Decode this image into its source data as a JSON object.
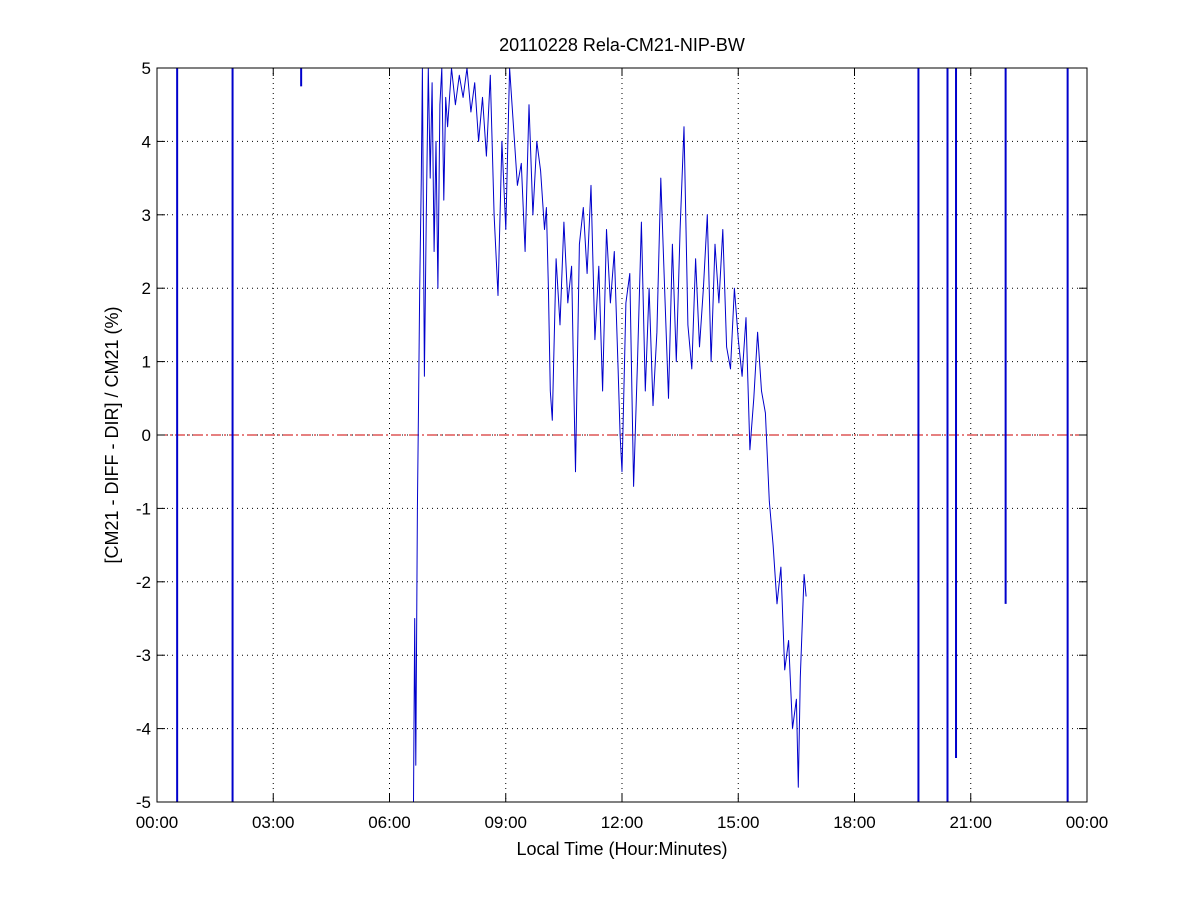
{
  "chart_data": {
    "type": "line",
    "title": "20110228 Rela-CM21-NIP-BW",
    "xlabel": "Local Time (Hour:Minutes)",
    "ylabel": "[CM21 - DIFF - DIR] / CM21 (%)",
    "xlim_hours": [
      0,
      24
    ],
    "ylim": [
      -5,
      5
    ],
    "x_ticks": [
      "00:00",
      "03:00",
      "06:00",
      "09:00",
      "12:00",
      "15:00",
      "18:00",
      "21:00",
      "00:00"
    ],
    "y_ticks": [
      "5",
      "4",
      "3",
      "2",
      "1",
      "0",
      "-1",
      "-2",
      "-3",
      "-4",
      "-5"
    ],
    "grid": true,
    "reference_line": {
      "y": 0,
      "style": "dash-dot",
      "color": "#cc0000"
    },
    "series_color": "#0000cc",
    "series": [
      {
        "x_hours": [
          6.62,
          6.65,
          6.68,
          6.72,
          6.75,
          6.78,
          6.82,
          6.85,
          6.9,
          6.95,
          7.0,
          7.05,
          7.1,
          7.15,
          7.2,
          7.25,
          7.3,
          7.35,
          7.4,
          7.45,
          7.5,
          7.6,
          7.7,
          7.8,
          7.9,
          8.0,
          8.1,
          8.2,
          8.3,
          8.4,
          8.5,
          8.6,
          8.7,
          8.8,
          8.9,
          9.0,
          9.1,
          9.2,
          9.3,
          9.4,
          9.5,
          9.6,
          9.7,
          9.8,
          9.9,
          10.0,
          10.05,
          10.1,
          10.15,
          10.2,
          10.3,
          10.4,
          10.5,
          10.6,
          10.7,
          10.75,
          10.8,
          10.9,
          11.0,
          11.1,
          11.2,
          11.3,
          11.4,
          11.5,
          11.6,
          11.7,
          11.8,
          11.9,
          11.95,
          12.0,
          12.1,
          12.2,
          12.3,
          12.4,
          12.5,
          12.6,
          12.7,
          12.8,
          12.9,
          13.0,
          13.1,
          13.2,
          13.3,
          13.4,
          13.5,
          13.6,
          13.7,
          13.8,
          13.9,
          14.0,
          14.1,
          14.2,
          14.3,
          14.4,
          14.5,
          14.6,
          14.7,
          14.8,
          14.9,
          15.0,
          15.1,
          15.2,
          15.3,
          15.4,
          15.5,
          15.6,
          15.7,
          15.8,
          15.9,
          16.0,
          16.1,
          16.2,
          16.3,
          16.4,
          16.5,
          16.55,
          16.6,
          16.65,
          16.7,
          16.75
        ],
        "values": [
          -5.0,
          -2.5,
          -4.5,
          -1.0,
          0.5,
          2.0,
          3.5,
          5.0,
          0.8,
          3.0,
          5.0,
          3.5,
          4.8,
          2.5,
          4.0,
          2.0,
          4.5,
          5.0,
          3.2,
          4.6,
          4.2,
          5.0,
          4.5,
          4.9,
          4.6,
          5.0,
          4.4,
          4.8,
          4.0,
          4.6,
          3.8,
          4.9,
          3.0,
          1.9,
          4.0,
          2.8,
          5.0,
          4.2,
          3.4,
          3.7,
          2.5,
          4.5,
          3.0,
          4.0,
          3.6,
          2.8,
          3.1,
          2.0,
          0.6,
          0.2,
          2.4,
          1.5,
          2.9,
          1.8,
          2.3,
          0.8,
          -0.5,
          2.6,
          3.1,
          2.2,
          3.4,
          1.3,
          2.3,
          0.6,
          2.8,
          1.8,
          2.5,
          0.9,
          0.0,
          -0.5,
          1.8,
          2.2,
          -0.7,
          1.0,
          2.9,
          0.6,
          2.0,
          0.4,
          1.4,
          3.5,
          2.0,
          0.5,
          2.6,
          1.0,
          2.8,
          4.2,
          1.5,
          0.9,
          2.4,
          1.2,
          2.0,
          3.0,
          1.0,
          2.6,
          1.8,
          2.8,
          1.2,
          0.9,
          2.0,
          1.3,
          0.8,
          1.6,
          -0.2,
          0.5,
          1.4,
          0.6,
          0.3,
          -0.9,
          -1.5,
          -2.3,
          -1.8,
          -3.2,
          -2.8,
          -4.0,
          -3.6,
          -4.8,
          -3.3,
          -2.6,
          -1.9,
          -2.2
        ]
      }
    ],
    "vertical_spikes": [
      {
        "x_hours": 0.52,
        "y_from": -5,
        "y_to": 5
      },
      {
        "x_hours": 1.95,
        "y_from": -5,
        "y_to": 5
      },
      {
        "x_hours": 3.72,
        "y_from": 4.75,
        "y_to": 5
      },
      {
        "x_hours": 19.65,
        "y_from": -5,
        "y_to": 5
      },
      {
        "x_hours": 20.4,
        "y_from": -5,
        "y_to": 5
      },
      {
        "x_hours": 20.62,
        "y_from": -4.4,
        "y_to": 5
      },
      {
        "x_hours": 21.9,
        "y_from": -2.3,
        "y_to": 5
      },
      {
        "x_hours": 23.5,
        "y_from": -5,
        "y_to": 5
      }
    ]
  }
}
